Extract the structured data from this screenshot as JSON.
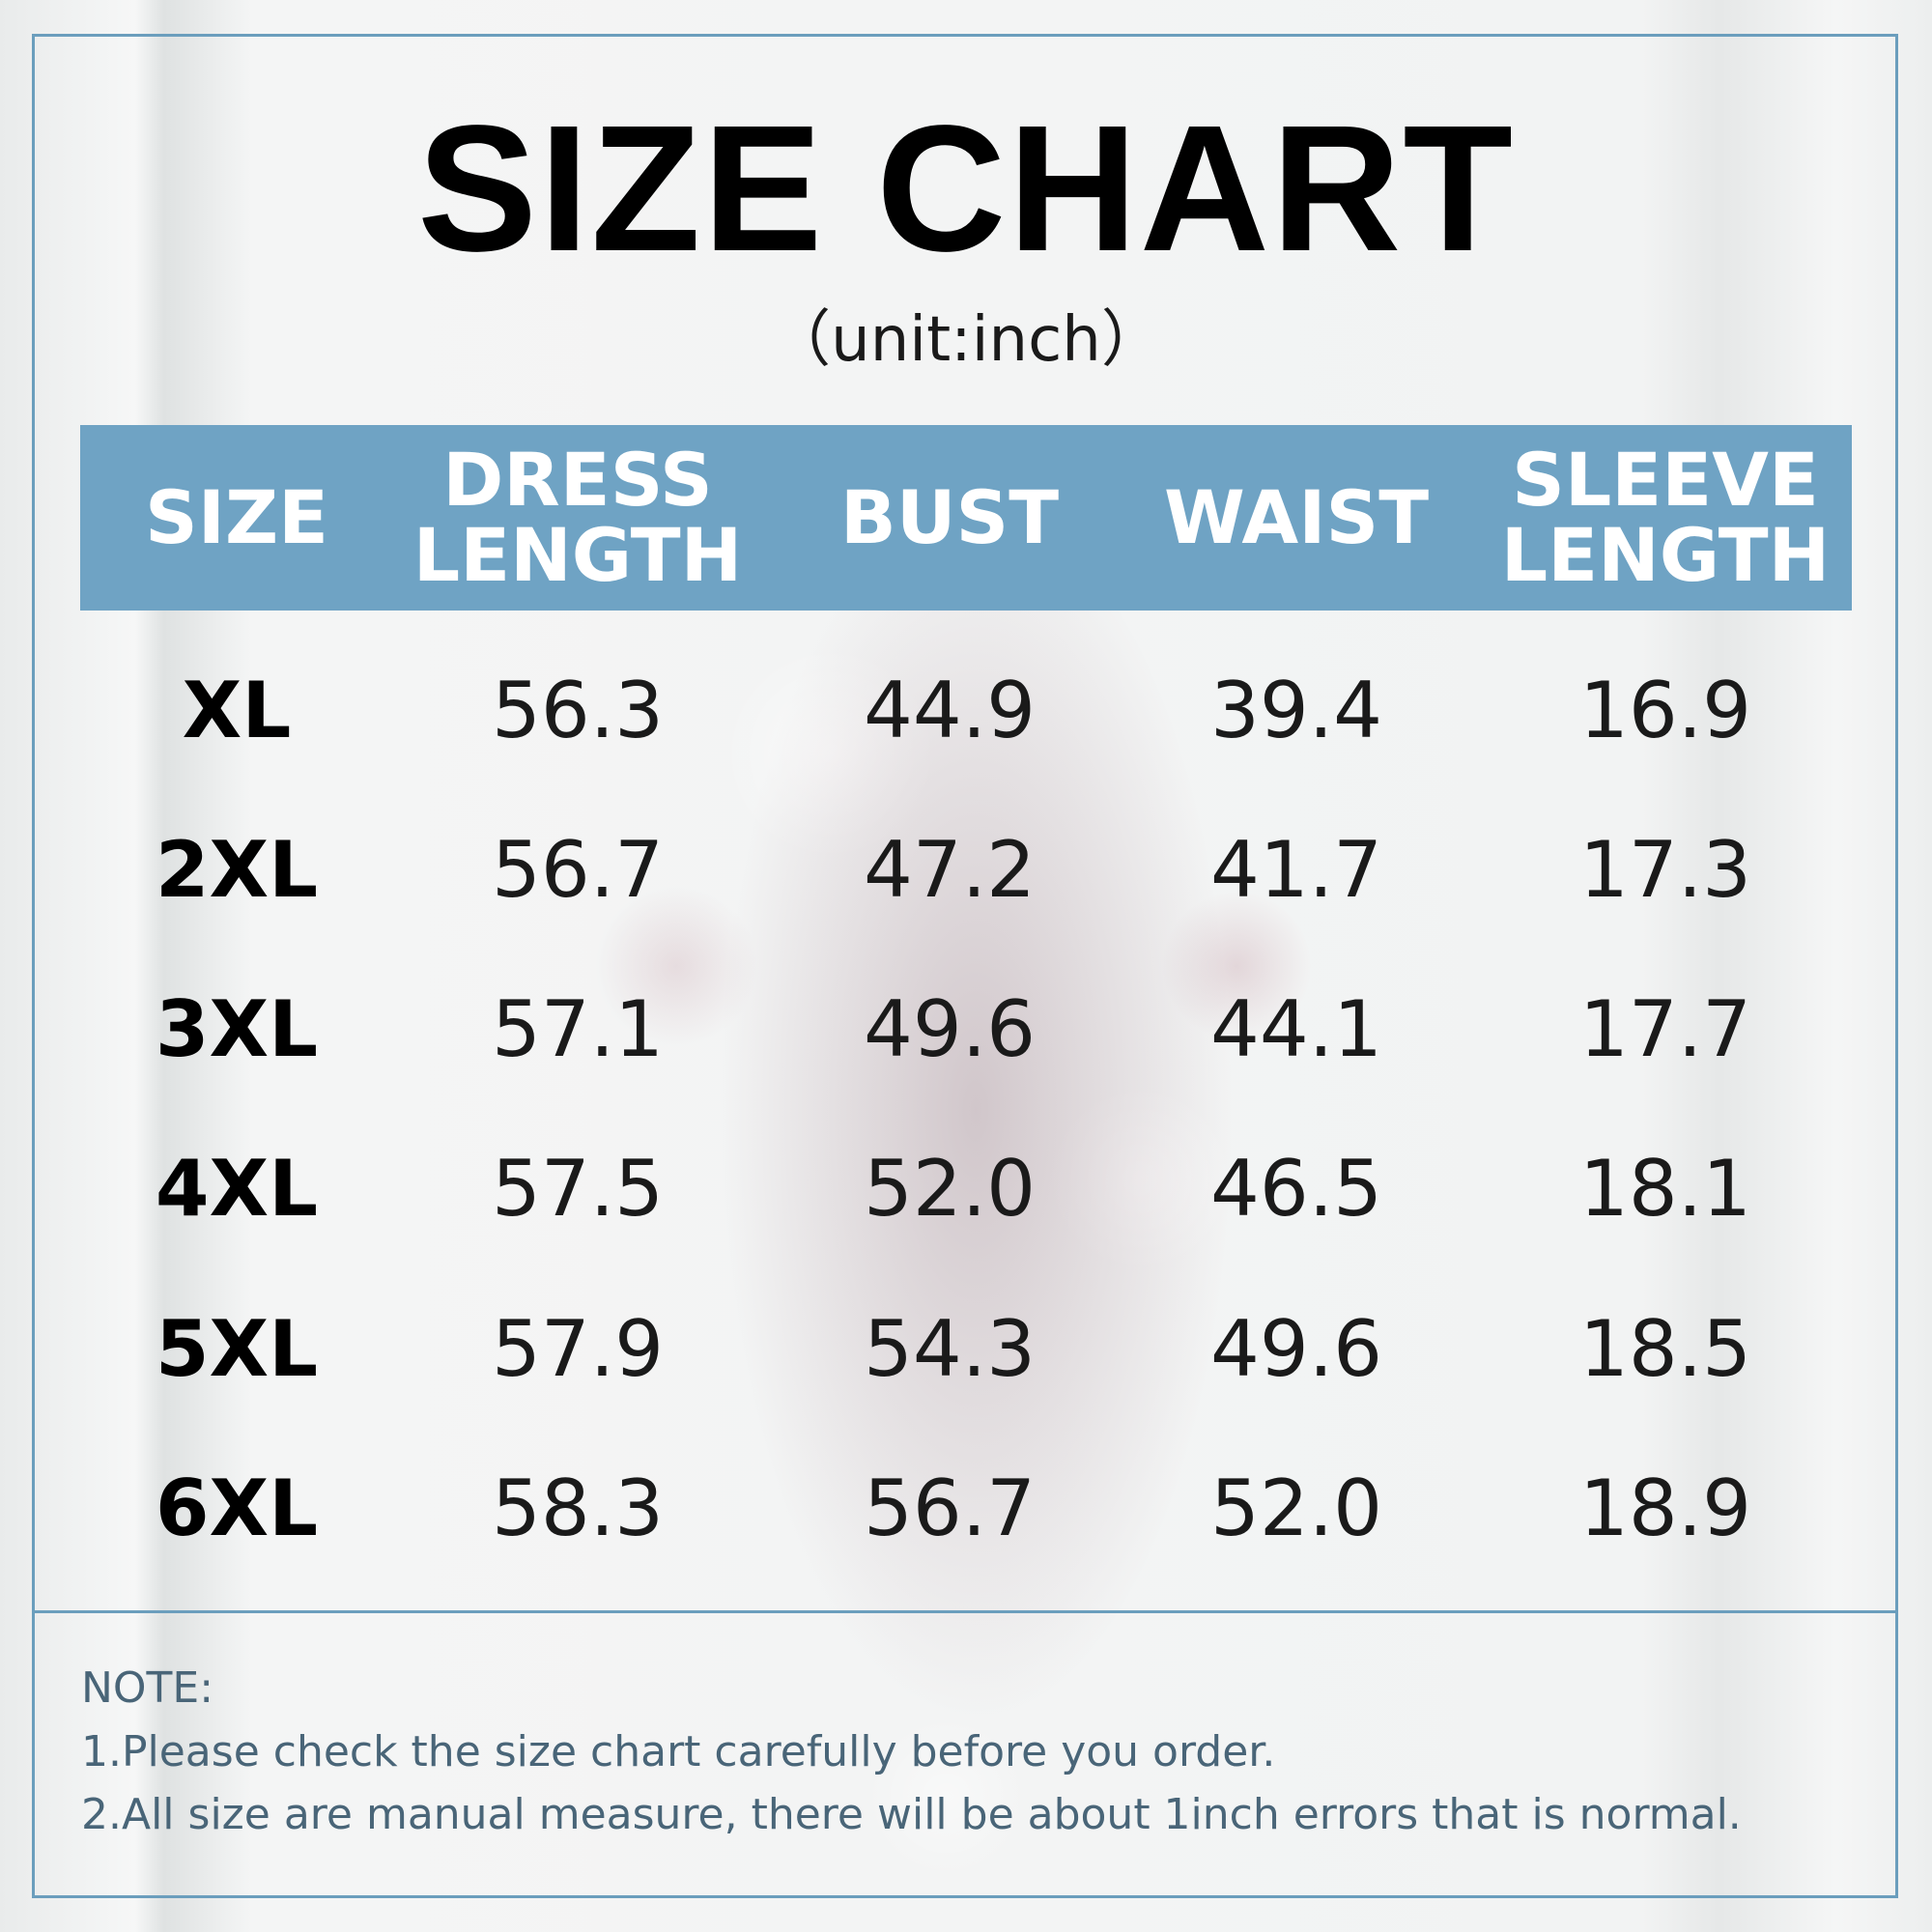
{
  "title": "SIZE CHART",
  "unit": "（unit:inch）",
  "colors": {
    "header_bg": "#6fa3c4",
    "frame": "#6b9ebd",
    "note_text": "#496578"
  },
  "table": {
    "headers": [
      {
        "line1": "SIZE",
        "line2": ""
      },
      {
        "line1": "DRESS",
        "line2": "LENGTH"
      },
      {
        "line1": "BUST",
        "line2": ""
      },
      {
        "line1": "WAIST",
        "line2": ""
      },
      {
        "line1": "SLEEVE",
        "line2": "LENGTH"
      }
    ],
    "rows": [
      {
        "size": "XL",
        "dress_length": "56.3",
        "bust": "44.9",
        "waist": "39.4",
        "sleeve_length": "16.9"
      },
      {
        "size": "2XL",
        "dress_length": "56.7",
        "bust": "47.2",
        "waist": "41.7",
        "sleeve_length": "17.3"
      },
      {
        "size": "3XL",
        "dress_length": "57.1",
        "bust": "49.6",
        "waist": "44.1",
        "sleeve_length": "17.7"
      },
      {
        "size": "4XL",
        "dress_length": "57.5",
        "bust": "52.0",
        "waist": "46.5",
        "sleeve_length": "18.1"
      },
      {
        "size": "5XL",
        "dress_length": "57.9",
        "bust": "54.3",
        "waist": "49.6",
        "sleeve_length": "18.5"
      },
      {
        "size": "6XL",
        "dress_length": "58.3",
        "bust": "56.7",
        "waist": "52.0",
        "sleeve_length": "18.9"
      }
    ]
  },
  "note": {
    "heading": "NOTE:",
    "line1": "1.Please check the size chart carefully before you order.",
    "line2": "2.All size are manual measure, there will be about 1inch errors that is normal."
  }
}
